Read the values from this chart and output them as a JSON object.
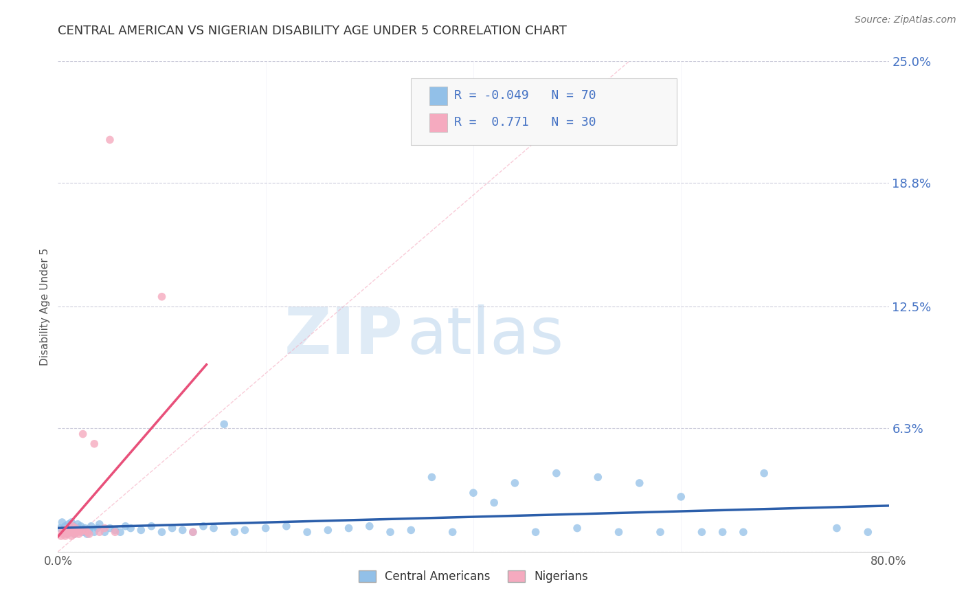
{
  "title": "CENTRAL AMERICAN VS NIGERIAN DISABILITY AGE UNDER 5 CORRELATION CHART",
  "source": "Source: ZipAtlas.com",
  "ylabel": "Disability Age Under 5",
  "xlim": [
    0.0,
    0.8
  ],
  "ylim": [
    0.0,
    0.25
  ],
  "ytick_vals": [
    0.0,
    0.063,
    0.125,
    0.188,
    0.25
  ],
  "ytick_labels": [
    "",
    "6.3%",
    "12.5%",
    "18.8%",
    "25.0%"
  ],
  "xtick_vals": [
    0.0,
    0.1,
    0.2,
    0.3,
    0.4,
    0.5,
    0.6,
    0.7,
    0.8
  ],
  "xtick_labels": [
    "0.0%",
    "",
    "",
    "",
    "",
    "",
    "",
    "",
    "80.0%"
  ],
  "blue_color": "#92C0E8",
  "pink_color": "#F5AABF",
  "blue_line_color": "#2B5EAA",
  "pink_line_color": "#E8507A",
  "R_blue": -0.049,
  "N_blue": 70,
  "R_pink": 0.771,
  "N_pink": 30,
  "legend_label_blue": "Central Americans",
  "legend_label_pink": "Nigerians",
  "watermark_zip": "ZIP",
  "watermark_atlas": "atlas",
  "blue_x": [
    0.002,
    0.004,
    0.006,
    0.007,
    0.008,
    0.009,
    0.01,
    0.011,
    0.012,
    0.013,
    0.014,
    0.015,
    0.016,
    0.017,
    0.018,
    0.019,
    0.02,
    0.022,
    0.024,
    0.026,
    0.028,
    0.03,
    0.032,
    0.035,
    0.038,
    0.04,
    0.045,
    0.05,
    0.055,
    0.06,
    0.065,
    0.07,
    0.08,
    0.09,
    0.1,
    0.11,
    0.12,
    0.13,
    0.14,
    0.15,
    0.16,
    0.17,
    0.18,
    0.2,
    0.22,
    0.24,
    0.26,
    0.28,
    0.3,
    0.32,
    0.34,
    0.36,
    0.38,
    0.4,
    0.42,
    0.44,
    0.46,
    0.48,
    0.5,
    0.52,
    0.54,
    0.56,
    0.58,
    0.6,
    0.62,
    0.64,
    0.66,
    0.68,
    0.75,
    0.78
  ],
  "blue_y": [
    0.012,
    0.015,
    0.01,
    0.013,
    0.011,
    0.009,
    0.014,
    0.012,
    0.01,
    0.015,
    0.011,
    0.013,
    0.009,
    0.012,
    0.01,
    0.014,
    0.011,
    0.013,
    0.01,
    0.012,
    0.009,
    0.011,
    0.013,
    0.01,
    0.012,
    0.014,
    0.01,
    0.012,
    0.011,
    0.01,
    0.013,
    0.012,
    0.011,
    0.013,
    0.01,
    0.012,
    0.011,
    0.01,
    0.013,
    0.012,
    0.065,
    0.01,
    0.011,
    0.012,
    0.013,
    0.01,
    0.011,
    0.012,
    0.013,
    0.01,
    0.011,
    0.038,
    0.01,
    0.03,
    0.025,
    0.035,
    0.01,
    0.04,
    0.012,
    0.038,
    0.01,
    0.035,
    0.01,
    0.028,
    0.01,
    0.01,
    0.01,
    0.04,
    0.012,
    0.01
  ],
  "pink_x": [
    0.003,
    0.004,
    0.005,
    0.006,
    0.007,
    0.008,
    0.009,
    0.01,
    0.011,
    0.012,
    0.013,
    0.014,
    0.015,
    0.016,
    0.017,
    0.018,
    0.019,
    0.02,
    0.022,
    0.024,
    0.026,
    0.028,
    0.03,
    0.035,
    0.04,
    0.045,
    0.05,
    0.055,
    0.1,
    0.13
  ],
  "pink_y": [
    0.008,
    0.01,
    0.009,
    0.011,
    0.008,
    0.01,
    0.009,
    0.012,
    0.01,
    0.011,
    0.008,
    0.013,
    0.01,
    0.009,
    0.012,
    0.01,
    0.011,
    0.009,
    0.01,
    0.06,
    0.011,
    0.01,
    0.009,
    0.055,
    0.01,
    0.012,
    0.21,
    0.01,
    0.13,
    0.01
  ]
}
